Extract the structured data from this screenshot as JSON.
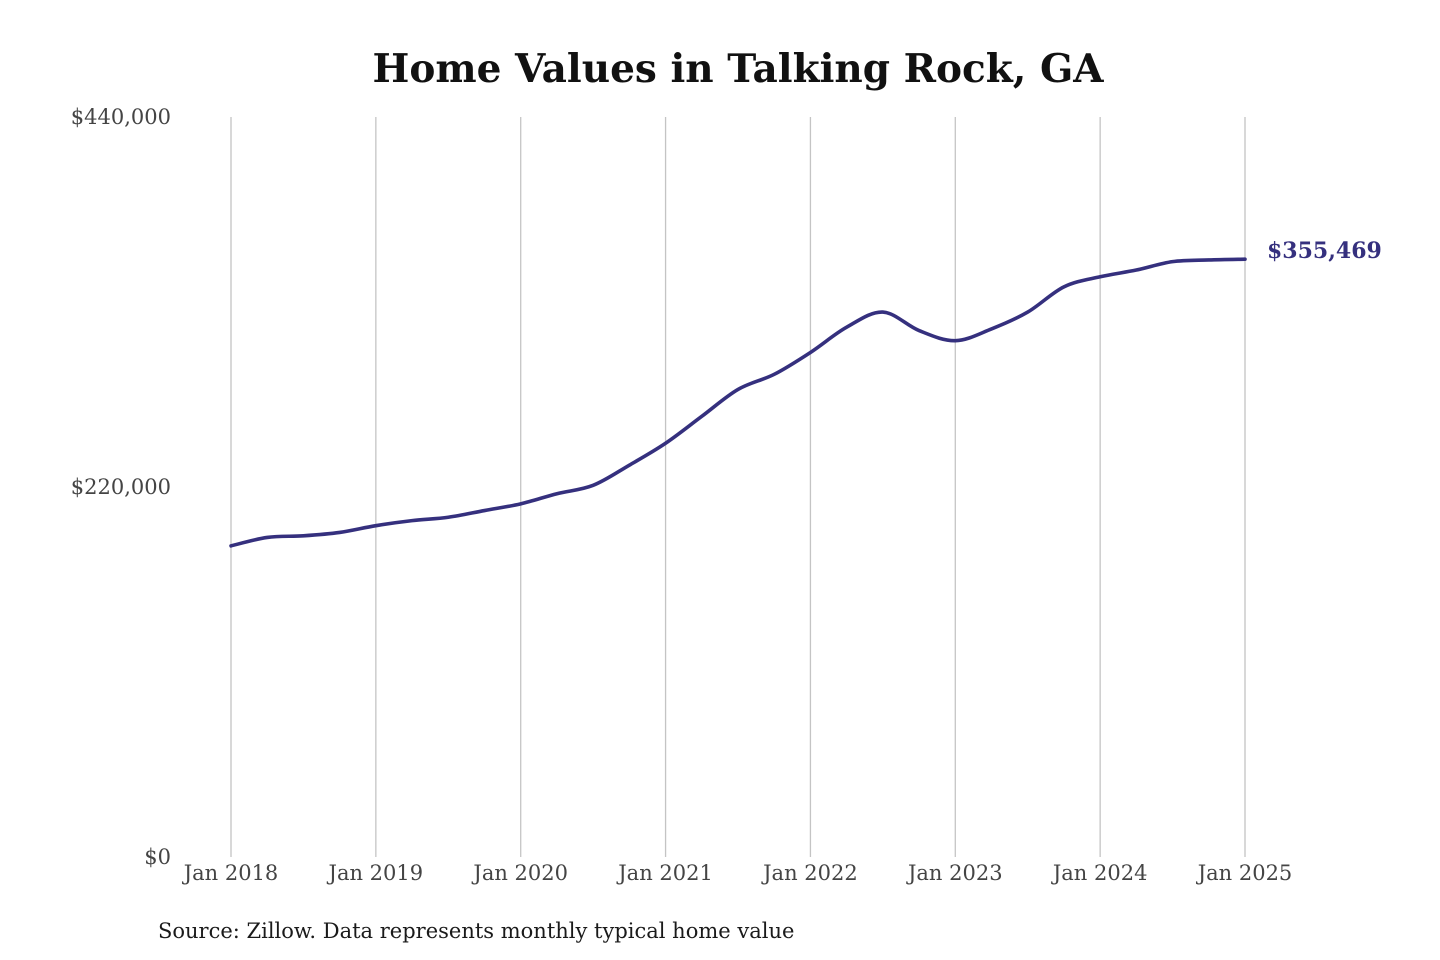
{
  "chart_data": {
    "type": "line",
    "title": "Home Values in Talking Rock, GA",
    "xlabel": "",
    "ylabel": "",
    "source": "Source: Zillow. Data represents monthly typical home value",
    "ylim": [
      0,
      440000
    ],
    "yticks": [
      {
        "value": 0,
        "label": "$0"
      },
      {
        "value": 220000,
        "label": "$220,000"
      },
      {
        "value": 440000,
        "label": "$440,000"
      }
    ],
    "xlim": [
      "2018-01",
      "2025-01"
    ],
    "xticks": [
      {
        "value": "2018-01",
        "label": "Jan 2018"
      },
      {
        "value": "2019-01",
        "label": "Jan 2019"
      },
      {
        "value": "2020-01",
        "label": "Jan 2020"
      },
      {
        "value": "2021-01",
        "label": "Jan 2021"
      },
      {
        "value": "2022-01",
        "label": "Jan 2022"
      },
      {
        "value": "2023-01",
        "label": "Jan 2023"
      },
      {
        "value": "2024-01",
        "label": "Jan 2024"
      },
      {
        "value": "2025-01",
        "label": "Jan 2025"
      }
    ],
    "grid": {
      "vertical": true,
      "horizontal": false
    },
    "legend": "none",
    "series": [
      {
        "color": "#35307e",
        "end_label": "$355,469",
        "points": [
          [
            "2018-01",
            185000
          ],
          [
            "2018-04",
            190000
          ],
          [
            "2018-07",
            191000
          ],
          [
            "2018-10",
            193000
          ],
          [
            "2019-01",
            197000
          ],
          [
            "2019-04",
            200000
          ],
          [
            "2019-07",
            202000
          ],
          [
            "2019-10",
            206000
          ],
          [
            "2020-01",
            210000
          ],
          [
            "2020-04",
            216000
          ],
          [
            "2020-07",
            221000
          ],
          [
            "2020-10",
            233000
          ],
          [
            "2021-01",
            246000
          ],
          [
            "2021-04",
            262000
          ],
          [
            "2021-07",
            278000
          ],
          [
            "2021-10",
            287000
          ],
          [
            "2022-01",
            300000
          ],
          [
            "2022-04",
            315000
          ],
          [
            "2022-07",
            324000
          ],
          [
            "2022-10",
            313000
          ],
          [
            "2023-01",
            307000
          ],
          [
            "2023-04",
            314000
          ],
          [
            "2023-07",
            324000
          ],
          [
            "2023-10",
            339000
          ],
          [
            "2024-01",
            345000
          ],
          [
            "2024-04",
            349000
          ],
          [
            "2024-07",
            354000
          ],
          [
            "2024-10",
            355000
          ],
          [
            "2025-01",
            355469
          ]
        ]
      }
    ]
  }
}
